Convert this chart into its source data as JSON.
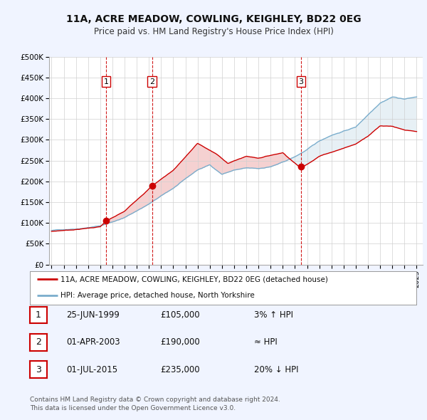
{
  "title": "11A, ACRE MEADOW, COWLING, KEIGHLEY, BD22 0EG",
  "subtitle": "Price paid vs. HM Land Registry's House Price Index (HPI)",
  "bg_color": "#f0f4ff",
  "plot_bg_color": "#ffffff",
  "ylim": [
    0,
    500000
  ],
  "yticks": [
    0,
    50000,
    100000,
    150000,
    200000,
    250000,
    300000,
    350000,
    400000,
    450000,
    500000
  ],
  "ytick_labels": [
    "£0",
    "£50K",
    "£100K",
    "£150K",
    "£200K",
    "£250K",
    "£300K",
    "£350K",
    "£400K",
    "£450K",
    "£500K"
  ],
  "xlim_start": 1994.8,
  "xlim_end": 2025.5,
  "xticks": [
    1995,
    1996,
    1997,
    1998,
    1999,
    2000,
    2001,
    2002,
    2003,
    2004,
    2005,
    2006,
    2007,
    2008,
    2009,
    2010,
    2011,
    2012,
    2013,
    2014,
    2015,
    2016,
    2017,
    2018,
    2019,
    2020,
    2021,
    2022,
    2023,
    2024,
    2025
  ],
  "sale_color": "#cc0000",
  "hpi_color": "#7aadcc",
  "sale_dot_color": "#cc0000",
  "vline_color": "#cc0000",
  "vline_style": "--",
  "sales": [
    {
      "date": 1999.48,
      "price": 105000,
      "label": "1"
    },
    {
      "date": 2003.25,
      "price": 190000,
      "label": "2"
    },
    {
      "date": 2015.5,
      "price": 235000,
      "label": "3"
    }
  ],
  "table_rows": [
    {
      "num": "1",
      "date": "25-JUN-1999",
      "price": "£105,000",
      "hpi_rel": "3% ↑ HPI"
    },
    {
      "num": "2",
      "date": "01-APR-2003",
      "price": "£190,000",
      "hpi_rel": "≈ HPI"
    },
    {
      "num": "3",
      "date": "01-JUL-2015",
      "price": "£235,000",
      "hpi_rel": "20% ↓ HPI"
    }
  ],
  "legend_line1": "11A, ACRE MEADOW, COWLING, KEIGHLEY, BD22 0EG (detached house)",
  "legend_line2": "HPI: Average price, detached house, North Yorkshire",
  "footer1": "Contains HM Land Registry data © Crown copyright and database right 2024.",
  "footer2": "This data is licensed under the Open Government Licence v3.0."
}
